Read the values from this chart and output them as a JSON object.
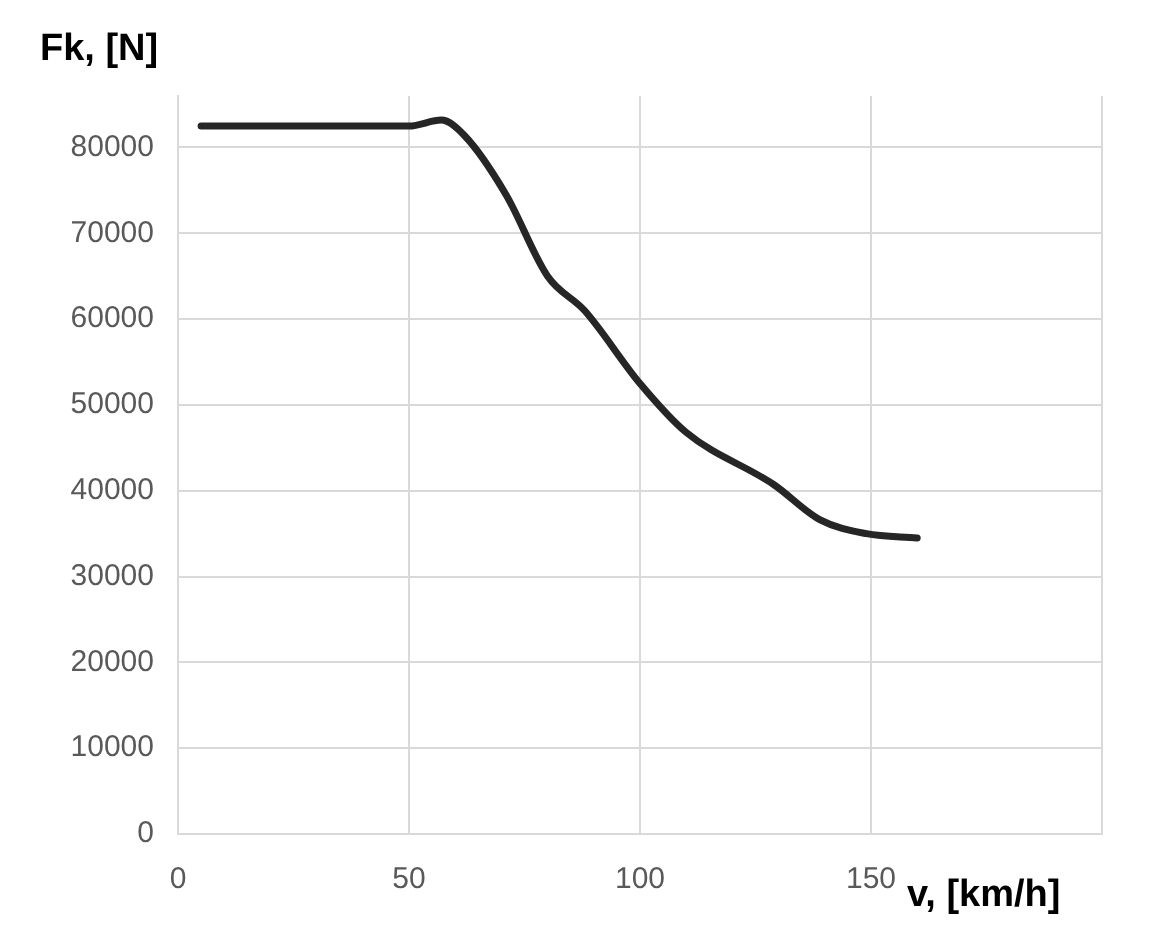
{
  "chart_data": {
    "type": "line",
    "xlabel": "v, [km/h]",
    "ylabel": "Fk, [N]",
    "x": [
      5,
      20,
      35,
      50,
      57,
      62,
      71,
      80,
      88,
      100,
      110,
      129,
      139,
      149,
      160
    ],
    "series": [
      {
        "color": "#262626",
        "values": [
          82500,
          82500,
          82500,
          82500,
          83200,
          81400,
          74500,
          65000,
          61000,
          52500,
          46800,
          40700,
          36600,
          35000,
          34500
        ]
      }
    ],
    "xlim": [
      0,
      200
    ],
    "xticks": [
      0,
      50,
      100,
      150,
      {
        "value": 200,
        "label": null
      }
    ],
    "ylim": [
      0,
      86000
    ],
    "yticks": [
      0,
      10000,
      20000,
      30000,
      40000,
      50000,
      60000,
      70000,
      80000
    ],
    "grid": true,
    "legend": false,
    "marker": "none",
    "line_style": "solid"
  }
}
